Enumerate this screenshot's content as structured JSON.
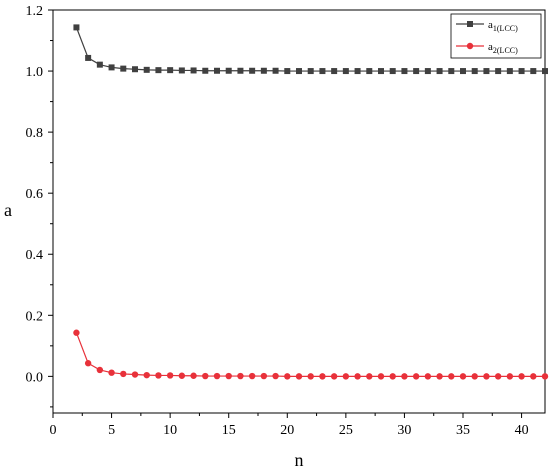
{
  "chart_data": {
    "type": "line",
    "xlabel": "n",
    "ylabel": "a",
    "xlim": [
      0,
      42
    ],
    "ylim": [
      -0.12,
      1.2
    ],
    "xticks": [
      0,
      5,
      10,
      15,
      20,
      25,
      30,
      35,
      40
    ],
    "yticks": [
      0.0,
      0.2,
      0.4,
      0.6,
      0.8,
      1.0,
      1.2
    ],
    "xtick_labels": [
      "0",
      "5",
      "10",
      "15",
      "20",
      "25",
      "30",
      "35",
      "40"
    ],
    "ytick_labels": [
      "0.0",
      "0.2",
      "0.4",
      "0.6",
      "0.8",
      "1.0",
      "1.2"
    ],
    "grid": false,
    "legend_position": "top-right",
    "x": [
      2,
      3,
      4,
      5,
      6,
      7,
      8,
      9,
      10,
      11,
      12,
      13,
      14,
      15,
      16,
      17,
      18,
      19,
      20,
      21,
      22,
      23,
      24,
      25,
      26,
      27,
      28,
      29,
      30,
      31,
      32,
      33,
      34,
      35,
      36,
      37,
      38,
      39,
      40,
      41,
      42
    ],
    "series": [
      {
        "name": "a1(LCC)",
        "name_main": "a",
        "name_sub": "1(LCC)",
        "color": "#404040",
        "marker": "square",
        "values": [
          1.143,
          1.043,
          1.021,
          1.012,
          1.008,
          1.006,
          1.004,
          1.003,
          1.003,
          1.002,
          1.002,
          1.001,
          1.001,
          1.001,
          1.001,
          1.001,
          1.001,
          1.001,
          1.0,
          1.0,
          1.0,
          1.0,
          1.0,
          1.0,
          1.0,
          1.0,
          1.0,
          1.0,
          1.0,
          1.0,
          1.0,
          1.0,
          1.0,
          1.0,
          1.0,
          1.0,
          1.0,
          1.0,
          1.0,
          1.0,
          1.0
        ]
      },
      {
        "name": "a2(LCC)",
        "name_main": "a",
        "name_sub": "2(LCC)",
        "color": "#e8313a",
        "marker": "circle",
        "values": [
          0.143,
          0.043,
          0.021,
          0.012,
          0.008,
          0.006,
          0.004,
          0.003,
          0.003,
          0.002,
          0.002,
          0.001,
          0.001,
          0.001,
          0.001,
          0.001,
          0.001,
          0.001,
          0.0,
          0.0,
          0.0,
          0.0,
          0.0,
          0.0,
          0.0,
          0.0,
          0.0,
          0.0,
          0.0,
          0.0,
          0.0,
          0.0,
          0.0,
          0.0,
          0.0,
          0.0,
          0.0,
          0.0,
          0.0,
          0.0,
          0.0
        ]
      }
    ]
  }
}
